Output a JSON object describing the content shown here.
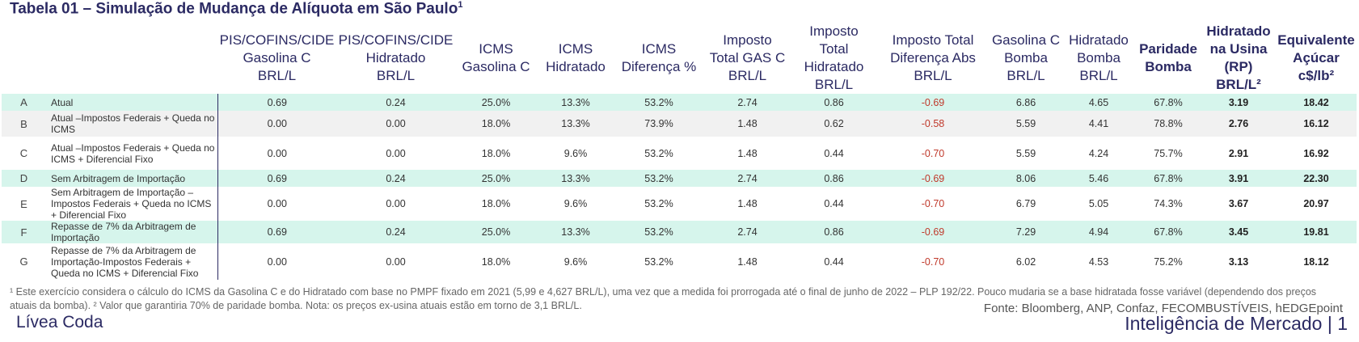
{
  "title": "Tabela 01 – Simulação de Mudança de Alíquota em São Paulo",
  "title_sup": "1",
  "headers": {
    "pis_gas": [
      "PIS/COFINS/CIDE",
      "Gasolina C",
      "BRL/L"
    ],
    "pis_hid": [
      "PIS/COFINS/CIDE",
      "Hidratado",
      "BRL/L"
    ],
    "icms_gas": [
      "ICMS",
      "Gasolina C"
    ],
    "icms_hid": [
      "ICMS",
      "Hidratado"
    ],
    "icms_dif": [
      "ICMS",
      "Diferença %"
    ],
    "imp_gas": [
      "Imposto",
      "Total GAS C",
      "BRL/L"
    ],
    "imp_hid": [
      "Imposto",
      "Total",
      "Hidratado",
      "BRL/L"
    ],
    "imp_dif": [
      "Imposto Total",
      "Diferença Abs",
      "BRL/L"
    ],
    "gas_bomba": [
      "Gasolina C",
      "Bomba",
      "BRL/L"
    ],
    "hid_bomba": [
      "Hidratado",
      "Bomba",
      "BRL/L"
    ],
    "paridade": [
      "Paridade",
      "Bomba"
    ],
    "hid_usina": [
      "Hidratado",
      "na Usina",
      "(RP)",
      "BRL/L²"
    ],
    "equiv": [
      "Equivalente",
      "Açúcar",
      "c$/lb²"
    ]
  },
  "rows": [
    {
      "letter": "A",
      "desc": "Atual",
      "pis_gas": "0.69",
      "pis_hid": "0.24",
      "icms_gas": "25.0%",
      "icms_hid": "13.3%",
      "icms_dif": "53.2%",
      "imp_gas": "2.74",
      "imp_hid": "0.86",
      "imp_dif": "-0.69",
      "gas_bomba": "6.86",
      "hid_bomba": "4.65",
      "paridade": "67.8%",
      "hid_usina": "3.19",
      "equiv": "18.42"
    },
    {
      "letter": "B",
      "desc": "Atual –Impostos Federais + Queda no ICMS",
      "pis_gas": "0.00",
      "pis_hid": "0.00",
      "icms_gas": "18.0%",
      "icms_hid": "13.3%",
      "icms_dif": "73.9%",
      "imp_gas": "1.48",
      "imp_hid": "0.62",
      "imp_dif": "-0.58",
      "gas_bomba": "5.59",
      "hid_bomba": "4.41",
      "paridade": "78.8%",
      "hid_usina": "2.76",
      "equiv": "16.12"
    },
    {
      "letter": "C",
      "desc": "Atual –Impostos Federais + Queda no ICMS + Diferencial Fixo",
      "pis_gas": "0.00",
      "pis_hid": "0.00",
      "icms_gas": "18.0%",
      "icms_hid": "9.6%",
      "icms_dif": "53.2%",
      "imp_gas": "1.48",
      "imp_hid": "0.44",
      "imp_dif": "-0.70",
      "gas_bomba": "5.59",
      "hid_bomba": "4.24",
      "paridade": "75.7%",
      "hid_usina": "2.91",
      "equiv": "16.92"
    },
    {
      "letter": "D",
      "desc": "Sem Arbitragem de Importação",
      "pis_gas": "0.69",
      "pis_hid": "0.24",
      "icms_gas": "25.0%",
      "icms_hid": "13.3%",
      "icms_dif": "53.2%",
      "imp_gas": "2.74",
      "imp_hid": "0.86",
      "imp_dif": "-0.69",
      "gas_bomba": "8.06",
      "hid_bomba": "5.46",
      "paridade": "67.8%",
      "hid_usina": "3.91",
      "equiv": "22.30"
    },
    {
      "letter": "E",
      "desc": "Sem Arbitragem de Importação – Impostos Federais + Queda no ICMS + Diferencial Fixo",
      "pis_gas": "0.00",
      "pis_hid": "0.00",
      "icms_gas": "18.0%",
      "icms_hid": "9.6%",
      "icms_dif": "53.2%",
      "imp_gas": "1.48",
      "imp_hid": "0.44",
      "imp_dif": "-0.70",
      "gas_bomba": "6.79",
      "hid_bomba": "5.05",
      "paridade": "74.3%",
      "hid_usina": "3.67",
      "equiv": "20.97"
    },
    {
      "letter": "F",
      "desc": "Repasse de 7% da Arbitragem de Importação",
      "pis_gas": "0.69",
      "pis_hid": "0.24",
      "icms_gas": "25.0%",
      "icms_hid": "13.3%",
      "icms_dif": "53.2%",
      "imp_gas": "2.74",
      "imp_hid": "0.86",
      "imp_dif": "-0.69",
      "gas_bomba": "7.29",
      "hid_bomba": "4.94",
      "paridade": "67.8%",
      "hid_usina": "3.45",
      "equiv": "19.81"
    },
    {
      "letter": "G",
      "desc": "Repasse de 7% da Arbitragem de Importação-Impostos Federais + Queda no ICMS + Diferencial Fixo",
      "pis_gas": "0.00",
      "pis_hid": "0.00",
      "icms_gas": "18.0%",
      "icms_hid": "9.6%",
      "icms_dif": "53.2%",
      "imp_gas": "1.48",
      "imp_hid": "0.44",
      "imp_dif": "-0.70",
      "gas_bomba": "6.02",
      "hid_bomba": "4.53",
      "paridade": "75.2%",
      "hid_usina": "3.13",
      "equiv": "18.12"
    }
  ],
  "notes": "¹ Este exercício considera o cálculo do ICMS da Gasolina C e do Hidratado com base no PMPF fixado em 2021 (5,99 e 4,627 BRL/L), uma vez que a medida foi prorrogada até o final de junho de 2022 – PLP 192/22. Pouco mudaria se a base hidratada fosse variável (dependendo dos preços atuais da bomba). ² Valor que garantiria 70% de paridade bomba. Nota: os preços ex-usina atuais estão em torno de 3,1 BRL/L.",
  "source": "Fonte: Bloomberg, ANP, Confaz, FECOMBUSTÍVEIS, hEDGEpoint",
  "author": "Lívea Coda",
  "brand": "Inteligência de Mercado | 1",
  "colors": {
    "teal_row": "#d6f5ec",
    "gray_row": "#f1f1f1",
    "navy": "#2b2a63",
    "negative": "#c0392b"
  }
}
